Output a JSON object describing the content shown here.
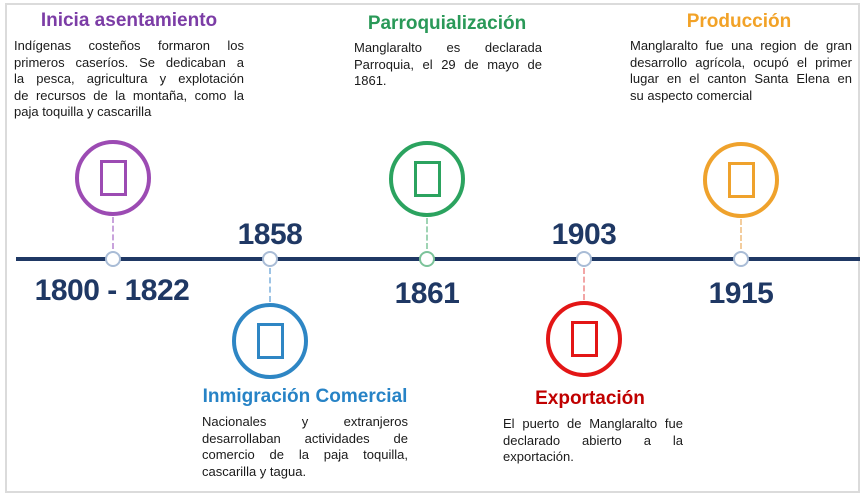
{
  "page": {
    "background": "#FFFFFF",
    "border_color": "#DBDBDB"
  },
  "timeline": {
    "line_color": "#1F3864",
    "year_color": "#1F3864"
  },
  "events": [
    {
      "title": "Inicia asentamiento",
      "year": "1800 - 1822",
      "position": "above-line",
      "color": "#7C3DA6",
      "circle_color": "#9C4BB3",
      "node_color": "#A9BCD6",
      "connector_color": "#C9A3DC",
      "icon": "placeholder-box-glyph",
      "description_lines": [
        "Indígenas costeños formaron los",
        "primeros caseríos. Se dedicaban a",
        "la pesca, agricultura y explotación",
        "de recursos de la montaña, como la",
        "paja toquilla y cascarilla"
      ]
    },
    {
      "title": "Inmigración Comercial",
      "year": "1858",
      "position": "below-line",
      "color": "#2783C6",
      "circle_color": "#2E86C4",
      "node_color": "#A9BCD6",
      "connector_color": "#9CC3E5",
      "icon": "placeholder-box-glyph",
      "description_lines": [
        "Nacionales y extranjeros",
        "desarrollaban actividades de",
        "comercio de la paja toquilla,",
        "cascarilla y tagua."
      ]
    },
    {
      "title": "Parroquialización",
      "year": "1861",
      "position": "above-line",
      "color": "#2A9958",
      "circle_color": "#2BA35F",
      "node_color": "#7CC39A",
      "connector_color": "#9FD4B4",
      "icon": "placeholder-box-glyph",
      "description_lines": [
        "Manglaralto es declarada",
        "Parroquia, el 29 de mayo de",
        "1861."
      ]
    },
    {
      "title": "Exportación",
      "year": "1903",
      "position": "below-line",
      "color": "#C00000",
      "circle_color": "#E31616",
      "node_color": "#A9BCD6",
      "connector_color": "#F2A6A6",
      "icon": "placeholder-box-glyph",
      "description_lines": [
        "El puerto de Manglaralto fue",
        "declarado abierto a la",
        "exportación."
      ]
    },
    {
      "title": "Producción",
      "year": "1915",
      "position": "above-line",
      "color": "#F2A227",
      "circle_color": "#EFA22C",
      "node_color": "#A9BCD6",
      "connector_color": "#F3CD9E",
      "icon": "placeholder-box-glyph",
      "description_lines": [
        "Manglaralto fue una region de gran",
        "desarrollo agrícola, ocupó el primer",
        "lugar en el canton Santa Elena en",
        "su aspecto comercial"
      ]
    }
  ]
}
